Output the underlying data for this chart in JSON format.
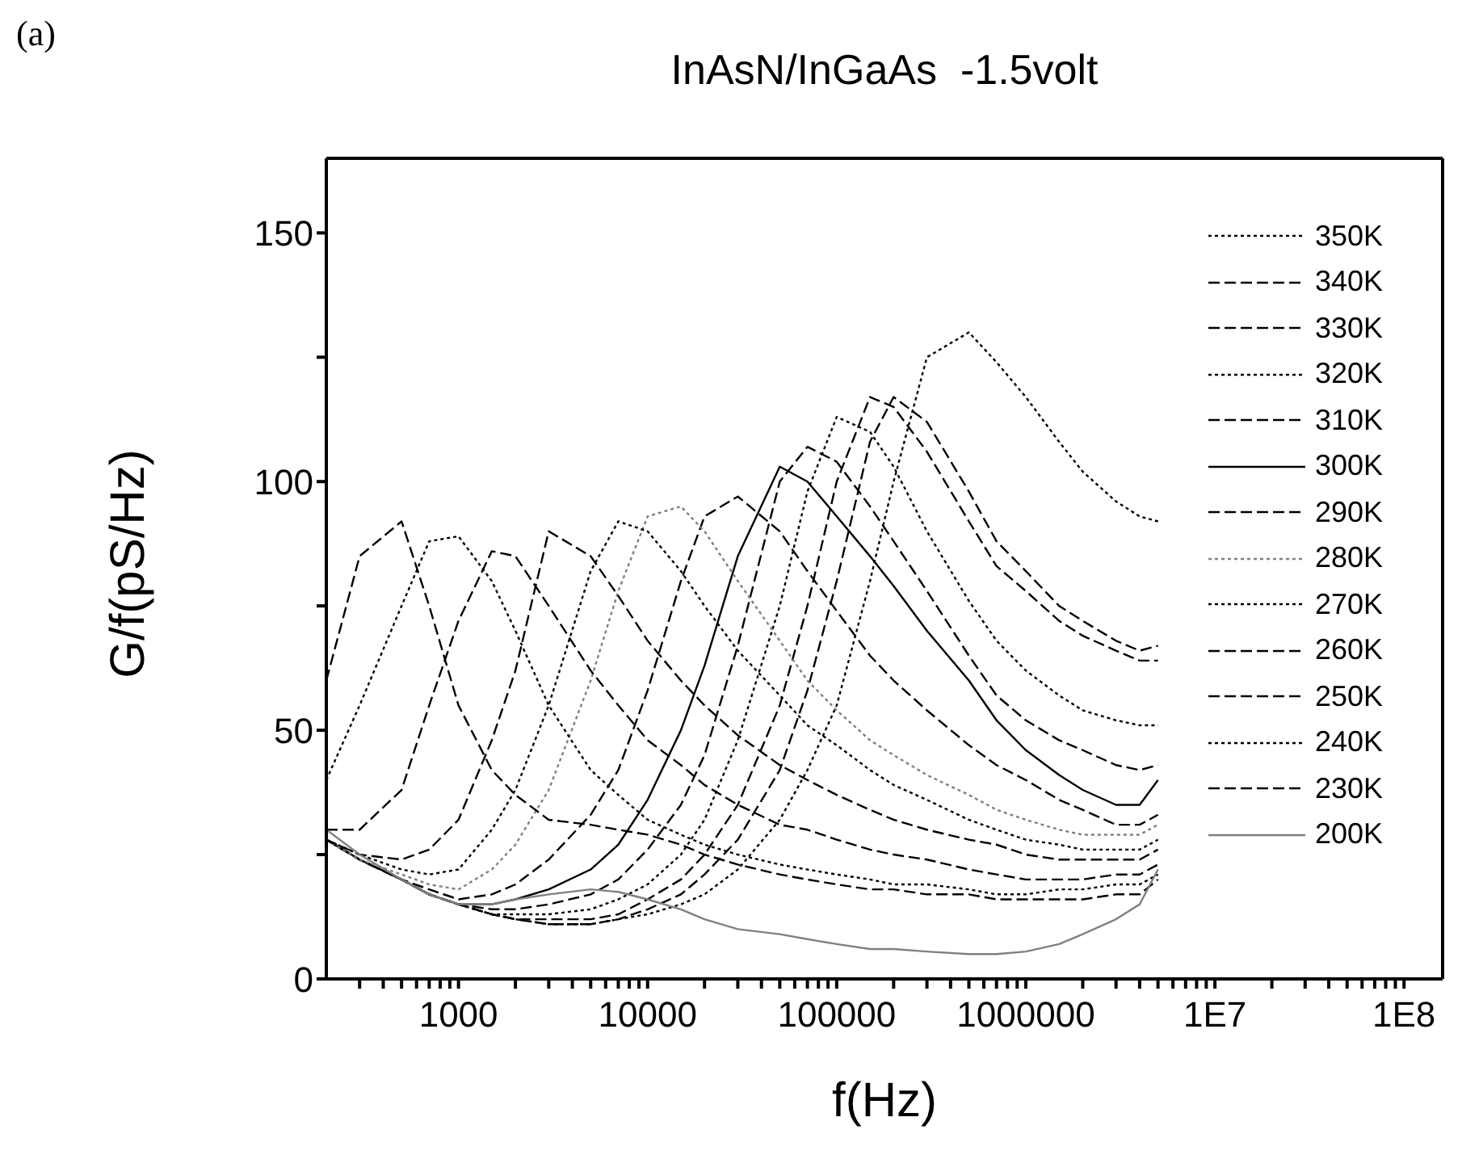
{
  "chart_data": {
    "type": "line",
    "title": "InAsN/InGaAs  -1.5volt",
    "xlabel": "f(Hz)",
    "ylabel": "G/f(pS/Hz)",
    "annotations": [
      "(a)"
    ],
    "log": "x",
    "legend": "top right",
    "marker": "none",
    "xlim": [
      200,
      160000000
    ],
    "ylim": [
      0,
      165
    ],
    "xticks": [
      {
        "value": 300,
        "label": null
      },
      {
        "value": 400,
        "label": null
      },
      {
        "value": 500,
        "label": null
      },
      {
        "value": 600,
        "label": null
      },
      {
        "value": 700,
        "label": null
      },
      {
        "value": 800,
        "label": null
      },
      {
        "value": 900,
        "label": null
      },
      1000,
      {
        "value": 2000,
        "label": null
      },
      {
        "value": 3000,
        "label": null
      },
      {
        "value": 4000,
        "label": null
      },
      {
        "value": 5000,
        "label": null
      },
      {
        "value": 6000,
        "label": null
      },
      {
        "value": 7000,
        "label": null
      },
      {
        "value": 8000,
        "label": null
      },
      {
        "value": 9000,
        "label": null
      },
      10000,
      {
        "value": 20000,
        "label": null
      },
      {
        "value": 30000,
        "label": null
      },
      {
        "value": 40000,
        "label": null
      },
      {
        "value": 50000,
        "label": null
      },
      {
        "value": 60000,
        "label": null
      },
      {
        "value": 70000,
        "label": null
      },
      {
        "value": 80000,
        "label": null
      },
      {
        "value": 90000,
        "label": null
      },
      100000,
      {
        "value": 200000,
        "label": null
      },
      {
        "value": 300000,
        "label": null
      },
      {
        "value": 400000,
        "label": null
      },
      {
        "value": 500000,
        "label": null
      },
      {
        "value": 600000,
        "label": null
      },
      {
        "value": 700000,
        "label": null
      },
      {
        "value": 800000,
        "label": null
      },
      {
        "value": 900000,
        "label": null
      },
      1000000,
      {
        "value": 2000000,
        "label": null
      },
      {
        "value": 3000000,
        "label": null
      },
      {
        "value": 4000000,
        "label": null
      },
      {
        "value": 5000000,
        "label": null
      },
      {
        "value": 6000000,
        "label": null
      },
      {
        "value": 7000000,
        "label": null
      },
      {
        "value": 8000000,
        "label": null
      },
      {
        "value": 9000000,
        "label": null
      },
      {
        "value": 10000000,
        "label": "1E7"
      },
      {
        "value": 20000000,
        "label": null
      },
      {
        "value": 30000000,
        "label": null
      },
      {
        "value": 40000000,
        "label": null
      },
      {
        "value": 50000000,
        "label": null
      },
      {
        "value": 60000000,
        "label": null
      },
      {
        "value": 70000000,
        "label": null
      },
      {
        "value": 80000000,
        "label": null
      },
      {
        "value": 90000000,
        "label": null
      },
      {
        "value": 100000000,
        "label": "1E8"
      }
    ],
    "yticks": [
      0,
      {
        "value": 25,
        "label": null
      },
      50,
      {
        "value": 75,
        "label": null
      },
      100,
      {
        "value": 125,
        "label": null
      },
      150
    ],
    "x": [
      200,
      300,
      500,
      700,
      1000,
      1500,
      2000,
      3000,
      5000,
      7000,
      10000,
      15000,
      20000,
      30000,
      50000,
      70000,
      100000,
      150000,
      200000,
      300000,
      500000,
      700000,
      1000000,
      1500000,
      2000000,
      3000000,
      4000000,
      5000000
    ],
    "series": [
      {
        "name": "350K",
        "color": "#000000",
        "line_style": "dotted",
        "values": [
          28,
          24,
          20,
          17,
          15,
          13,
          12,
          11,
          11,
          12,
          13,
          15,
          17,
          22,
          32,
          42,
          55,
          80,
          100,
          125,
          130,
          124,
          117,
          108,
          102,
          96,
          93,
          92
        ]
      },
      {
        "name": "340K",
        "color": "#000000",
        "line_style": "dashed",
        "values": [
          28,
          24,
          20,
          17,
          15,
          13,
          12,
          11,
          11,
          12,
          14,
          17,
          21,
          28,
          42,
          58,
          80,
          108,
          117,
          112,
          98,
          88,
          82,
          75,
          72,
          68,
          66,
          67
        ]
      },
      {
        "name": "330K",
        "color": "#000000",
        "line_style": "dashed",
        "values": [
          28,
          24,
          20,
          17,
          15,
          13,
          12,
          12,
          12,
          13,
          16,
          20,
          25,
          35,
          55,
          75,
          100,
          117,
          115,
          106,
          92,
          83,
          78,
          72,
          69,
          66,
          64,
          64
        ]
      },
      {
        "name": "320K",
        "color": "#000000",
        "line_style": "dotted",
        "values": [
          28,
          24,
          20,
          17,
          15,
          13,
          13,
          13,
          14,
          16,
          19,
          25,
          32,
          48,
          75,
          98,
          113,
          110,
          103,
          90,
          76,
          68,
          62,
          57,
          54,
          52,
          51,
          51
        ]
      },
      {
        "name": "310K",
        "color": "#000000",
        "line_style": "dashed",
        "values": [
          28,
          24,
          20,
          17,
          15,
          14,
          14,
          15,
          17,
          20,
          26,
          35,
          45,
          67,
          100,
          107,
          104,
          95,
          88,
          78,
          65,
          57,
          52,
          48,
          46,
          43,
          42,
          43
        ]
      },
      {
        "name": "300K",
        "color": "#000000",
        "line_style": "solid",
        "values": [
          28,
          24,
          20,
          17,
          15,
          15,
          16,
          18,
          22,
          27,
          36,
          50,
          63,
          85,
          103,
          100,
          93,
          85,
          79,
          70,
          60,
          52,
          46,
          41,
          38,
          35,
          35,
          40
        ]
      },
      {
        "name": "290K",
        "color": "#000000",
        "line_style": "dashed",
        "values": [
          28,
          24,
          20,
          18,
          16,
          17,
          19,
          24,
          33,
          42,
          58,
          80,
          93,
          97,
          90,
          82,
          74,
          65,
          60,
          54,
          47,
          43,
          40,
          36,
          34,
          31,
          31,
          33
        ]
      },
      {
        "name": "280K",
        "color": "#808080",
        "line_style": "dotted",
        "values": [
          28,
          24,
          21,
          19,
          18,
          22,
          27,
          38,
          60,
          78,
          93,
          95,
          90,
          80,
          68,
          60,
          54,
          48,
          45,
          41,
          37,
          34,
          32,
          30,
          29,
          29,
          29,
          31
        ]
      },
      {
        "name": "270K",
        "color": "#000000",
        "line_style": "dotted",
        "values": [
          28,
          25,
          22,
          21,
          22,
          30,
          38,
          55,
          82,
          92,
          90,
          82,
          75,
          66,
          57,
          51,
          47,
          42,
          39,
          36,
          32,
          30,
          28,
          27,
          26,
          26,
          26,
          28
        ]
      },
      {
        "name": "260K",
        "color": "#000000",
        "line_style": "dashed",
        "values": [
          28,
          25,
          24,
          26,
          32,
          48,
          62,
          90,
          85,
          77,
          68,
          60,
          55,
          49,
          43,
          40,
          37,
          34,
          32,
          30,
          28,
          27,
          25,
          24,
          24,
          24,
          24,
          26
        ]
      },
      {
        "name": "250K",
        "color": "#000000",
        "line_style": "dashed",
        "values": [
          30,
          30,
          38,
          55,
          72,
          86,
          85,
          75,
          62,
          55,
          48,
          43,
          39,
          35,
          31,
          30,
          28,
          26,
          25,
          24,
          22,
          21,
          20,
          20,
          20,
          21,
          21,
          23
        ]
      },
      {
        "name": "240K",
        "color": "#000000",
        "line_style": "dotted",
        "values": [
          40,
          55,
          75,
          88,
          89,
          80,
          70,
          55,
          42,
          37,
          32,
          29,
          27,
          25,
          23,
          22,
          21,
          20,
          19,
          19,
          18,
          17,
          17,
          18,
          18,
          19,
          19,
          21
        ]
      },
      {
        "name": "230K",
        "color": "#000000",
        "line_style": "dashed",
        "values": [
          60,
          85,
          92,
          75,
          55,
          42,
          37,
          32,
          31,
          30,
          29,
          27,
          25,
          23,
          21,
          20,
          19,
          18,
          18,
          17,
          17,
          16,
          16,
          16,
          16,
          17,
          17,
          20
        ]
      },
      {
        "name": "200K",
        "color": "#808080",
        "line_style": "solid",
        "values": [
          30,
          25,
          20,
          17,
          15,
          15,
          16,
          17,
          18,
          17.5,
          16,
          14,
          12,
          10,
          9,
          8,
          7,
          6,
          6,
          5.5,
          5,
          5,
          5.5,
          7,
          9,
          12,
          15,
          22
        ]
      }
    ]
  }
}
